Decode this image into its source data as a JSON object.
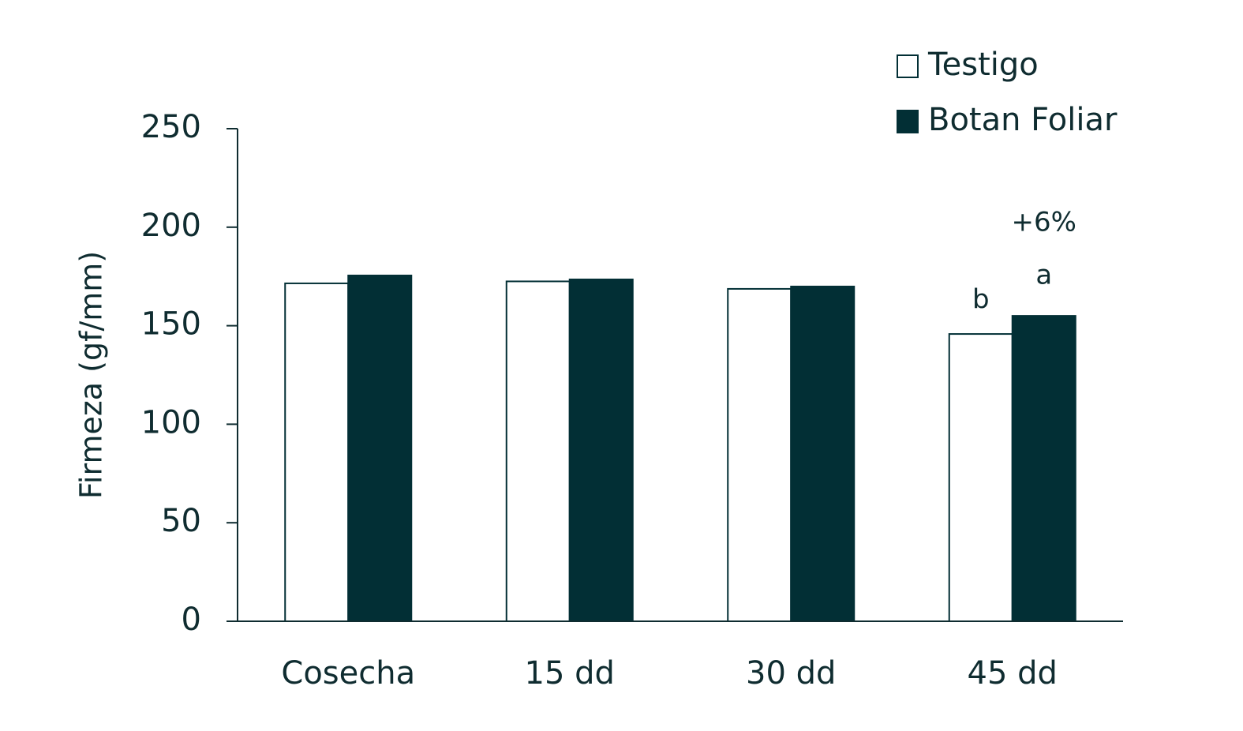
{
  "chart_data": {
    "type": "bar",
    "y_label": "Firmeza (gf/mm)",
    "categories": [
      "Cosecha",
      "15 dd",
      "30 dd",
      "45 dd"
    ],
    "series": [
      {
        "name": "Testigo",
        "color": "#ffffff",
        "values": [
          171.5,
          172.5,
          168.7,
          145.8
        ]
      },
      {
        "name": "Botan Foliar",
        "color": "#022f35",
        "values": [
          175.5,
          173.5,
          169.9,
          155
        ]
      }
    ],
    "ylim": [
      0,
      250
    ],
    "yticks": [
      0,
      50,
      100,
      150,
      200,
      250
    ],
    "annotations": [
      "b",
      "a",
      "+6%"
    ]
  }
}
